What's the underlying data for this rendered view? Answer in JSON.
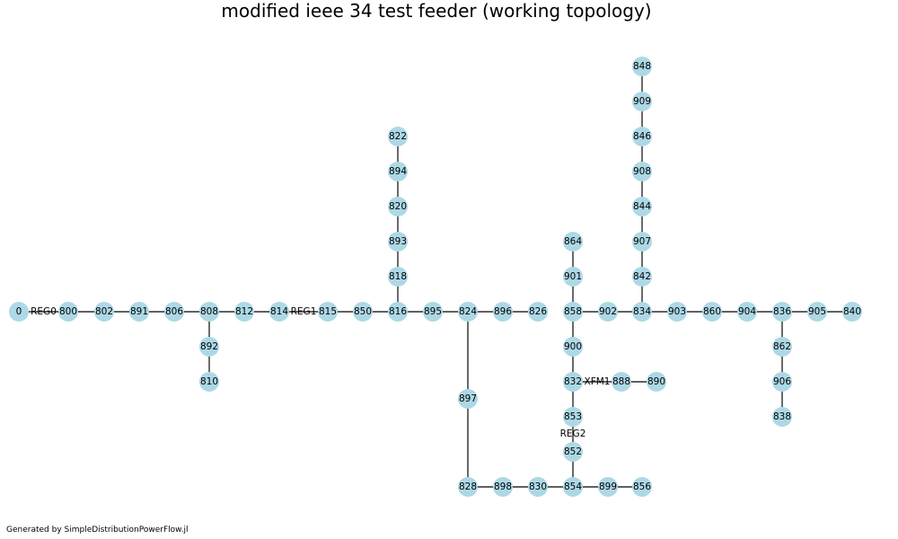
{
  "title": "modified ieee 34 test feeder (working topology)",
  "footer": "Generated by SimpleDistributionPowerFlow.jl",
  "colors": {
    "node_fill": "#add8e6",
    "edge": "#2b2b2b",
    "background": "#ffffff"
  },
  "nodes": [
    "0",
    "800",
    "802",
    "891",
    "806",
    "808",
    "812",
    "814",
    "815",
    "850",
    "816",
    "895",
    "824",
    "896",
    "826",
    "858",
    "902",
    "834",
    "903",
    "860",
    "904",
    "836",
    "905",
    "840",
    "892",
    "810",
    "822",
    "894",
    "820",
    "893",
    "818",
    "897",
    "828",
    "898",
    "830",
    "854",
    "899",
    "856",
    "864",
    "901",
    "900",
    "832",
    "888",
    "890",
    "853",
    "852",
    "848",
    "909",
    "846",
    "908",
    "844",
    "907",
    "842",
    "862",
    "906",
    "838"
  ],
  "edges": [
    {
      "from": "0",
      "to": "800",
      "label": "REG0"
    },
    {
      "from": "800",
      "to": "802",
      "label": ""
    },
    {
      "from": "802",
      "to": "891",
      "label": ""
    },
    {
      "from": "891",
      "to": "806",
      "label": ""
    },
    {
      "from": "806",
      "to": "808",
      "label": ""
    },
    {
      "from": "808",
      "to": "812",
      "label": ""
    },
    {
      "from": "812",
      "to": "814",
      "label": ""
    },
    {
      "from": "814",
      "to": "815",
      "label": "REG1"
    },
    {
      "from": "815",
      "to": "850",
      "label": ""
    },
    {
      "from": "850",
      "to": "816",
      "label": ""
    },
    {
      "from": "816",
      "to": "895",
      "label": ""
    },
    {
      "from": "895",
      "to": "824",
      "label": ""
    },
    {
      "from": "824",
      "to": "896",
      "label": ""
    },
    {
      "from": "896",
      "to": "826",
      "label": ""
    },
    {
      "from": "858",
      "to": "902",
      "label": ""
    },
    {
      "from": "902",
      "to": "834",
      "label": ""
    },
    {
      "from": "834",
      "to": "903",
      "label": ""
    },
    {
      "from": "903",
      "to": "860",
      "label": ""
    },
    {
      "from": "860",
      "to": "904",
      "label": ""
    },
    {
      "from": "904",
      "to": "836",
      "label": ""
    },
    {
      "from": "836",
      "to": "905",
      "label": ""
    },
    {
      "from": "905",
      "to": "840",
      "label": ""
    },
    {
      "from": "808",
      "to": "892",
      "label": ""
    },
    {
      "from": "892",
      "to": "810",
      "label": ""
    },
    {
      "from": "816",
      "to": "818",
      "label": ""
    },
    {
      "from": "818",
      "to": "893",
      "label": ""
    },
    {
      "from": "893",
      "to": "820",
      "label": ""
    },
    {
      "from": "820",
      "to": "894",
      "label": ""
    },
    {
      "from": "894",
      "to": "822",
      "label": ""
    },
    {
      "from": "824",
      "to": "897",
      "label": ""
    },
    {
      "from": "897",
      "to": "828",
      "label": ""
    },
    {
      "from": "828",
      "to": "898",
      "label": ""
    },
    {
      "from": "898",
      "to": "830",
      "label": ""
    },
    {
      "from": "830",
      "to": "854",
      "label": ""
    },
    {
      "from": "854",
      "to": "899",
      "label": ""
    },
    {
      "from": "899",
      "to": "856",
      "label": ""
    },
    {
      "from": "854",
      "to": "852",
      "label": ""
    },
    {
      "from": "852",
      "to": "853",
      "label": "REG2"
    },
    {
      "from": "853",
      "to": "832",
      "label": ""
    },
    {
      "from": "832",
      "to": "900",
      "label": ""
    },
    {
      "from": "900",
      "to": "858",
      "label": ""
    },
    {
      "from": "858",
      "to": "901",
      "label": ""
    },
    {
      "from": "901",
      "to": "864",
      "label": ""
    },
    {
      "from": "832",
      "to": "888",
      "label": "XFM1"
    },
    {
      "from": "888",
      "to": "890",
      "label": ""
    },
    {
      "from": "834",
      "to": "842",
      "label": ""
    },
    {
      "from": "842",
      "to": "907",
      "label": ""
    },
    {
      "from": "907",
      "to": "844",
      "label": ""
    },
    {
      "from": "844",
      "to": "908",
      "label": ""
    },
    {
      "from": "908",
      "to": "846",
      "label": ""
    },
    {
      "from": "846",
      "to": "909",
      "label": ""
    },
    {
      "from": "909",
      "to": "848",
      "label": ""
    },
    {
      "from": "836",
      "to": "862",
      "label": ""
    },
    {
      "from": "862",
      "to": "906",
      "label": ""
    },
    {
      "from": "906",
      "to": "838",
      "label": ""
    }
  ]
}
